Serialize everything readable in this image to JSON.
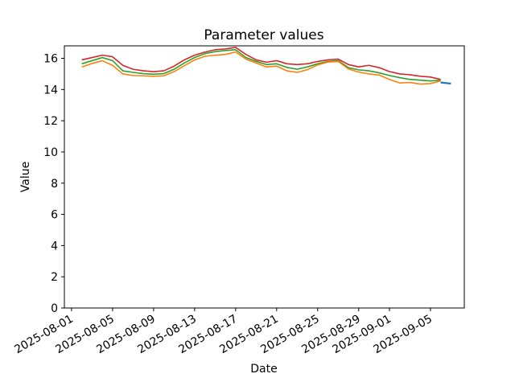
{
  "figure": {
    "background_color": "#ffffff"
  },
  "chart_data": {
    "type": "line",
    "title": "Parameter values",
    "xlabel": "Date",
    "ylabel": "Value",
    "grid": false,
    "legend": "none",
    "x_unit": "days since 2025-08-01",
    "xlim": [
      -0.7,
      38.3
    ],
    "ylim": [
      0,
      16.8
    ],
    "y_ticks": [
      0,
      2,
      4,
      6,
      8,
      10,
      12,
      14,
      16
    ],
    "x_ticks": [
      {
        "pos": 0,
        "label": "2025-08-01"
      },
      {
        "pos": 4,
        "label": "2025-08-05"
      },
      {
        "pos": 8,
        "label": "2025-08-09"
      },
      {
        "pos": 12,
        "label": "2025-08-13"
      },
      {
        "pos": 16,
        "label": "2025-08-17"
      },
      {
        "pos": 20,
        "label": "2025-08-21"
      },
      {
        "pos": 24,
        "label": "2025-08-25"
      },
      {
        "pos": 28,
        "label": "2025-08-29"
      },
      {
        "pos": 31,
        "label": "2025-09-01"
      },
      {
        "pos": 35,
        "label": "2025-09-05"
      }
    ],
    "x_tick_label_rotation_deg": 30,
    "series": [
      {
        "name": "red-line",
        "color": "#d62728",
        "linewidth": 1.6,
        "x": [
          1,
          2,
          3,
          4,
          5,
          6,
          7,
          8,
          9,
          10,
          11,
          12,
          13,
          14,
          15,
          16,
          17,
          18,
          19,
          20,
          21,
          22,
          23,
          24,
          25,
          26,
          27,
          28,
          29,
          30,
          31,
          32,
          33,
          34,
          35,
          36
        ],
        "values": [
          15.9,
          16.05,
          16.2,
          16.1,
          15.55,
          15.3,
          15.2,
          15.15,
          15.2,
          15.5,
          15.9,
          16.2,
          16.4,
          16.55,
          16.6,
          16.7,
          16.25,
          15.9,
          15.75,
          15.85,
          15.65,
          15.6,
          15.65,
          15.8,
          15.9,
          15.95,
          15.6,
          15.45,
          15.55,
          15.4,
          15.15,
          15.0,
          14.95,
          14.85,
          14.8,
          14.65
        ]
      },
      {
        "name": "green-line",
        "color": "#2ca02c",
        "linewidth": 1.6,
        "x": [
          1,
          2,
          3,
          4,
          5,
          6,
          7,
          8,
          9,
          10,
          11,
          12,
          13,
          14,
          15,
          16,
          17,
          18,
          19,
          20,
          21,
          22,
          23,
          24,
          25,
          26,
          27,
          28,
          29,
          30,
          31,
          32,
          33,
          34,
          35,
          36
        ],
        "values": [
          15.65,
          15.85,
          16.05,
          15.85,
          15.2,
          15.1,
          15.02,
          14.98,
          15.02,
          15.3,
          15.7,
          16.05,
          16.3,
          16.43,
          16.5,
          16.55,
          16.05,
          15.8,
          15.6,
          15.65,
          15.42,
          15.3,
          15.45,
          15.65,
          15.8,
          15.85,
          15.4,
          15.26,
          15.2,
          15.07,
          14.9,
          14.76,
          14.65,
          14.6,
          14.55,
          14.6
        ]
      },
      {
        "name": "orange-line",
        "color": "#ff7f0e",
        "linewidth": 1.6,
        "x": [
          1,
          2,
          3,
          4,
          5,
          6,
          7,
          8,
          9,
          10,
          11,
          12,
          13,
          14,
          15,
          16,
          17,
          18,
          19,
          20,
          21,
          22,
          23,
          24,
          25,
          26,
          27,
          28,
          29,
          30,
          31,
          32,
          33,
          34,
          35,
          36
        ],
        "values": [
          15.45,
          15.67,
          15.85,
          15.55,
          15.0,
          14.9,
          14.88,
          14.85,
          14.88,
          15.15,
          15.53,
          15.9,
          16.13,
          16.2,
          16.25,
          16.4,
          15.95,
          15.7,
          15.45,
          15.5,
          15.2,
          15.1,
          15.27,
          15.58,
          15.76,
          15.8,
          15.32,
          15.12,
          15.0,
          14.93,
          14.65,
          14.42,
          14.45,
          14.35,
          14.38,
          14.55
        ]
      },
      {
        "name": "blue-line",
        "color": "#1f77b4",
        "linewidth": 2.2,
        "x": [
          36,
          37
        ],
        "values": [
          14.45,
          14.38
        ]
      }
    ]
  }
}
